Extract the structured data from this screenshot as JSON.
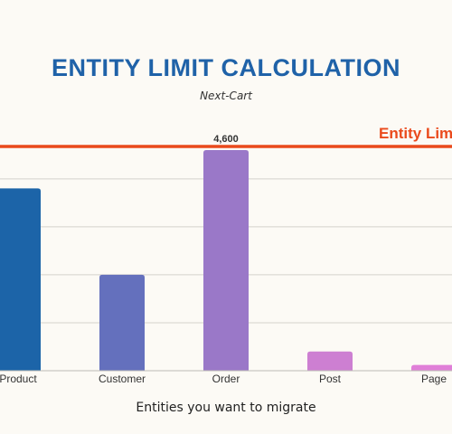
{
  "chart_data": {
    "type": "bar",
    "title": "ENTITY LIMIT CALCULATION",
    "subtitle": "Next-Cart",
    "xlabel": "Entities you want to migrate",
    "ylabel": "",
    "categories": [
      "Product",
      "Customer",
      "Order",
      "Post",
      "Page"
    ],
    "values": [
      3800,
      2000,
      4600,
      400,
      120
    ],
    "data_labels": [
      "",
      "",
      "4,600",
      "",
      ""
    ],
    "bar_colors": [
      "#1c64a8",
      "#6470bd",
      "#9a78c8",
      "#cd7fd2",
      "#e07fd8"
    ],
    "ylim": [
      0,
      5000
    ],
    "grid": true,
    "reference_line": {
      "label": "Entity Limit",
      "value": 4750,
      "color": "#ea4a1c"
    },
    "grid_color": "#d4d2cc",
    "text_color": "#333333"
  }
}
